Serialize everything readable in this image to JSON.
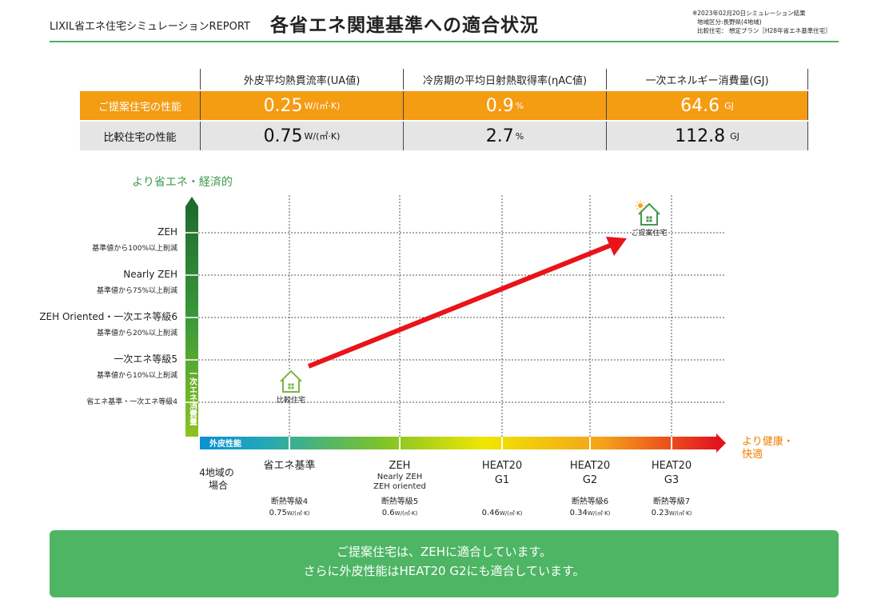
{
  "header": {
    "brand": "LIXIL省エネ住宅シミュレーションREPORT",
    "title": "各省エネ関連基準への適合状況",
    "meta": [
      "※2023年02月20日シミュレーション結果",
      "地域区分:長野県(4地域)",
      "比較住宅： 想定プラン［H28年省エネ基準住宅］"
    ]
  },
  "table": {
    "headers": [
      "外皮平均熱貫流率(UA値)",
      "冷房期の平均日射熱取得率(ηAC値)",
      "一次エネルギー消費量(GJ)"
    ],
    "rows": [
      {
        "label": "ご提案住宅の性能",
        "values": [
          "0.25",
          "0.9",
          "64.6"
        ],
        "units": [
          "W/(㎡·K)",
          "%",
          "GJ"
        ]
      },
      {
        "label": "比較住宅の性能",
        "values": [
          "0.75",
          "2.7",
          "112.8"
        ],
        "units": [
          "W/(㎡·K)",
          "%",
          "GJ"
        ]
      }
    ]
  },
  "chart_data": {
    "type": "scatter",
    "ytitle": "より省エネ・経済的",
    "y_axis_bar_label": "一次エネ消費量",
    "x_axis_bar_label": "外皮性能",
    "xtitle": "より健康・快適",
    "region_label": "4地域の場合",
    "y_levels": [
      {
        "label": "ZEH",
        "sub": "基準値から100%以上削減"
      },
      {
        "label": "Nearly ZEH",
        "sub": "基準値から75%以上削減"
      },
      {
        "label": "ZEH Oriented・一次エネ等級6",
        "sub": "基準値から20%以上削減"
      },
      {
        "label": "一次エネ等級5",
        "sub": "基準値から10%以上削減"
      },
      {
        "label": "省エネ基準・一次エネ等級4",
        "sub": ""
      }
    ],
    "x_levels": [
      {
        "label": "省エネ基準",
        "sub": [],
        "grade": "断熱等級4",
        "value": "0.75",
        "unit": "W/(㎡·K)"
      },
      {
        "label": "ZEH",
        "sub": [
          "Nearly ZEH",
          "ZEH oriented"
        ],
        "grade": "断熱等級5",
        "value": "0.6",
        "unit": "W/(㎡·K)"
      },
      {
        "label": "HEAT20",
        "sub": [
          "G1"
        ],
        "grade": "",
        "value": "0.46",
        "unit": "W/(㎡·K)"
      },
      {
        "label": "HEAT20",
        "sub": [
          "G2"
        ],
        "grade": "断熱等級6",
        "value": "0.34",
        "unit": "W/(㎡·K)"
      },
      {
        "label": "HEAT20",
        "sub": [
          "G3"
        ],
        "grade": "断熱等級7",
        "value": "0.23",
        "unit": "W/(㎡·K)"
      }
    ],
    "points": [
      {
        "name": "比較住宅",
        "x_level": "省エネ基準",
        "y_level": "省エネ基準・一次エネ等級4"
      },
      {
        "name": "ご提案住宅",
        "x_level": "HEAT20 G2",
        "y_level": "ZEH"
      }
    ]
  },
  "banner": {
    "line1": "ご提案住宅は、ZEHに適合しています。",
    "line2": "さらに外皮性能はHEAT20 G2にも適合しています。"
  },
  "colors": {
    "green": "#4bb061",
    "orange": "#f49c12",
    "arrow": "#e8141a",
    "house": "#7ab648",
    "house_proposed": "#3e9a4e"
  }
}
